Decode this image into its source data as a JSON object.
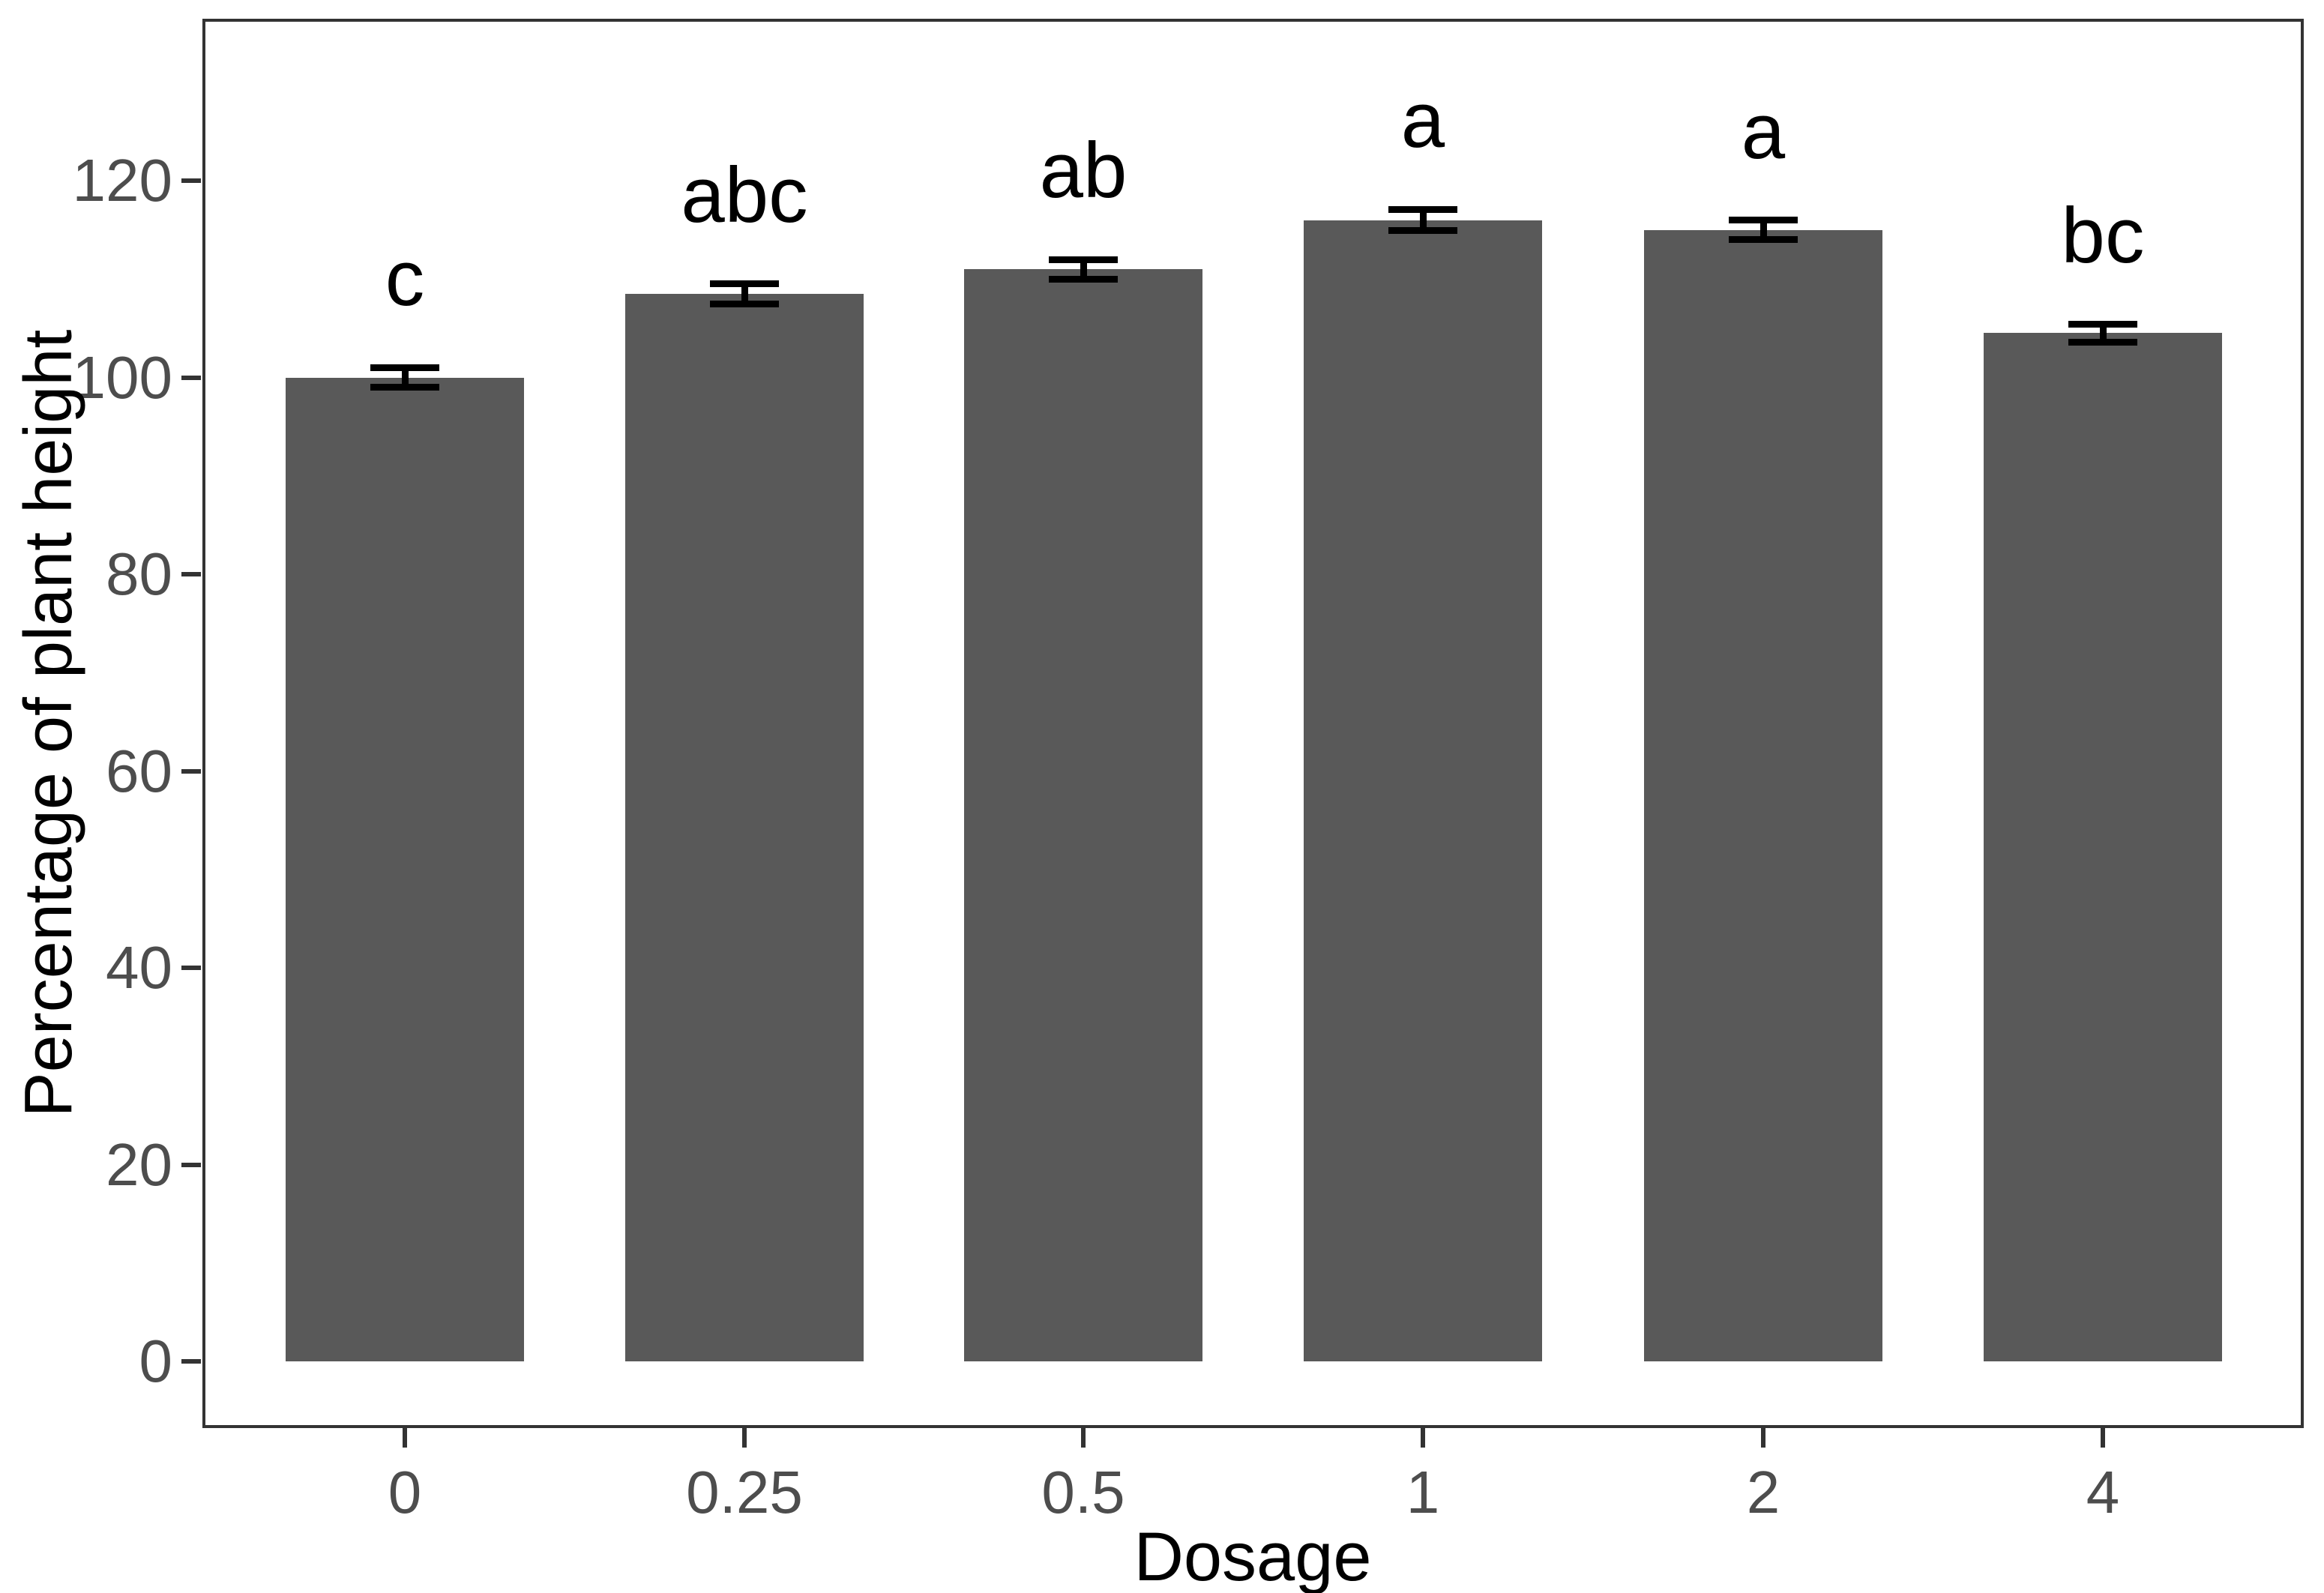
{
  "chart_data": {
    "type": "bar",
    "title": "",
    "xlabel": "Dosage",
    "ylabel": "Percentage of plant height",
    "categories": [
      "0",
      "0.25",
      "0.5",
      "1",
      "2",
      "4"
    ],
    "values": [
      100,
      108.5,
      111,
      116,
      115,
      104.5
    ],
    "error_bars": [
      1.0,
      1.0,
      1.0,
      1.1,
      1.0,
      0.9
    ],
    "significance_letters": [
      "c",
      "abc",
      "ab",
      "a",
      "a",
      "bc"
    ],
    "yticks": [
      0,
      20,
      40,
      60,
      80,
      100,
      120
    ],
    "ylim": [
      0,
      136
    ],
    "grid": false,
    "legend": "none",
    "bar_color": "#595959",
    "error_bar_color": "#000000",
    "axis_text_color": "#4d4d4d",
    "axis_line_color": "#333333",
    "annotation_color": "#000000",
    "background_color": "#ffffff"
  }
}
